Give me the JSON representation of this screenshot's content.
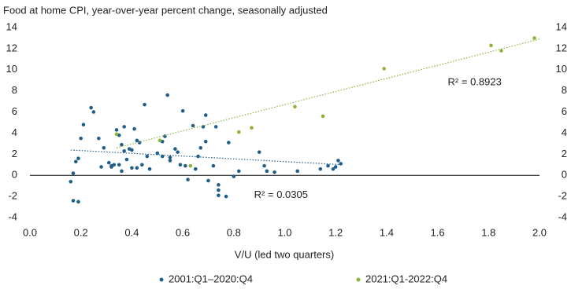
{
  "chart_data": {
    "type": "scatter",
    "title": "Food at home CPI, year-over-year percent change, seasonally adjusted",
    "x_label": "V/U (led two quarters)",
    "xlim": [
      0,
      2
    ],
    "xticks": [
      {
        "value": 0,
        "label": "0.0"
      },
      {
        "value": 0.2,
        "label": "0.2"
      },
      {
        "value": 0.4,
        "label": "0.4"
      },
      {
        "value": 0.6,
        "label": "0.6"
      },
      {
        "value": 0.8,
        "label": "0.8"
      },
      {
        "value": 1,
        "label": "1.0"
      },
      {
        "value": 1.2,
        "label": "1.2"
      },
      {
        "value": 1.4,
        "label": "1.4"
      },
      {
        "value": 1.6,
        "label": "1.6"
      },
      {
        "value": 1.8,
        "label": "1.8"
      },
      {
        "value": 2,
        "label": "2.0"
      }
    ],
    "ylim": [
      -4,
      14
    ],
    "yticks": [
      -4,
      -2,
      0,
      2,
      4,
      6,
      8,
      10,
      12,
      14
    ],
    "y2lim": [
      -4,
      14
    ],
    "y2ticks": [
      -4,
      -2,
      0,
      2,
      4,
      6,
      8,
      10,
      12,
      14
    ],
    "grid": false,
    "legend": "bottom",
    "series": [
      {
        "name": "2001:Q1–2020:Q4",
        "color": "#215f8b",
        "annotation": "R² = 0.0305",
        "x": [
          0.16,
          0.17,
          0.17,
          0.18,
          0.19,
          0.19,
          0.2,
          0.21,
          0.24,
          0.25,
          0.27,
          0.28,
          0.29,
          0.31,
          0.32,
          0.32,
          0.33,
          0.34,
          0.35,
          0.35,
          0.36,
          0.36,
          0.37,
          0.37,
          0.38,
          0.39,
          0.4,
          0.4,
          0.41,
          0.42,
          0.42,
          0.43,
          0.44,
          0.45,
          0.46,
          0.47,
          0.5,
          0.52,
          0.52,
          0.53,
          0.54,
          0.55,
          0.55,
          0.57,
          0.58,
          0.59,
          0.6,
          0.61,
          0.62,
          0.64,
          0.65,
          0.66,
          0.67,
          0.68,
          0.69,
          0.69,
          0.7,
          0.72,
          0.73,
          0.74,
          0.74,
          0.74,
          0.77,
          0.78,
          0.8,
          0.82,
          0.9,
          0.92,
          0.93,
          0.96,
          1.05,
          1.14,
          1.17,
          1.19,
          1.2,
          1.21,
          1.22
        ],
        "values": [
          -0.6,
          0.2,
          -2.4,
          1.3,
          -2.5,
          1.6,
          3.5,
          4.8,
          6.4,
          6.0,
          3.5,
          0.8,
          2.6,
          1.2,
          0.9,
          0.8,
          1.0,
          4.3,
          3.8,
          1.0,
          0.4,
          2.9,
          4.6,
          2.3,
          1.5,
          2.5,
          2.4,
          0.7,
          4.4,
          3.3,
          0.7,
          3.1,
          1.0,
          6.7,
          1.8,
          0.6,
          2.1,
          1.8,
          3.2,
          3.7,
          7.6,
          1.7,
          1.4,
          2.5,
          2.2,
          1.0,
          6.1,
          0.9,
          -0.4,
          4.7,
          0.6,
          1.8,
          2.6,
          4.6,
          3.2,
          5.7,
          -0.5,
          0.9,
          4.6,
          -0.9,
          -1.4,
          -1.9,
          -2.0,
          3.1,
          -0.1,
          0.4,
          2.2,
          0.9,
          0.4,
          0.3,
          0.4,
          0.6,
          0.9,
          0.6,
          0.8,
          1.4,
          1.1
        ],
        "trend_x": [
          0.16,
          1.23
        ],
        "trend_y": [
          2.4,
          1.0
        ]
      },
      {
        "name": "2021:Q1-2022:Q4",
        "color": "#8db33a",
        "annotation": "R² = 0.8923",
        "x": [
          0.34,
          0.51,
          0.63,
          0.82,
          0.87,
          1.04,
          1.15,
          1.39,
          1.81,
          1.85,
          1.98
        ],
        "values": [
          3.9,
          3.3,
          0.9,
          4.1,
          4.5,
          6.5,
          5.6,
          10.1,
          12.3,
          11.8,
          13.0
        ],
        "trend_x": [
          0.34,
          2.0
        ],
        "trend_y": [
          2.6,
          12.9
        ]
      }
    ]
  }
}
